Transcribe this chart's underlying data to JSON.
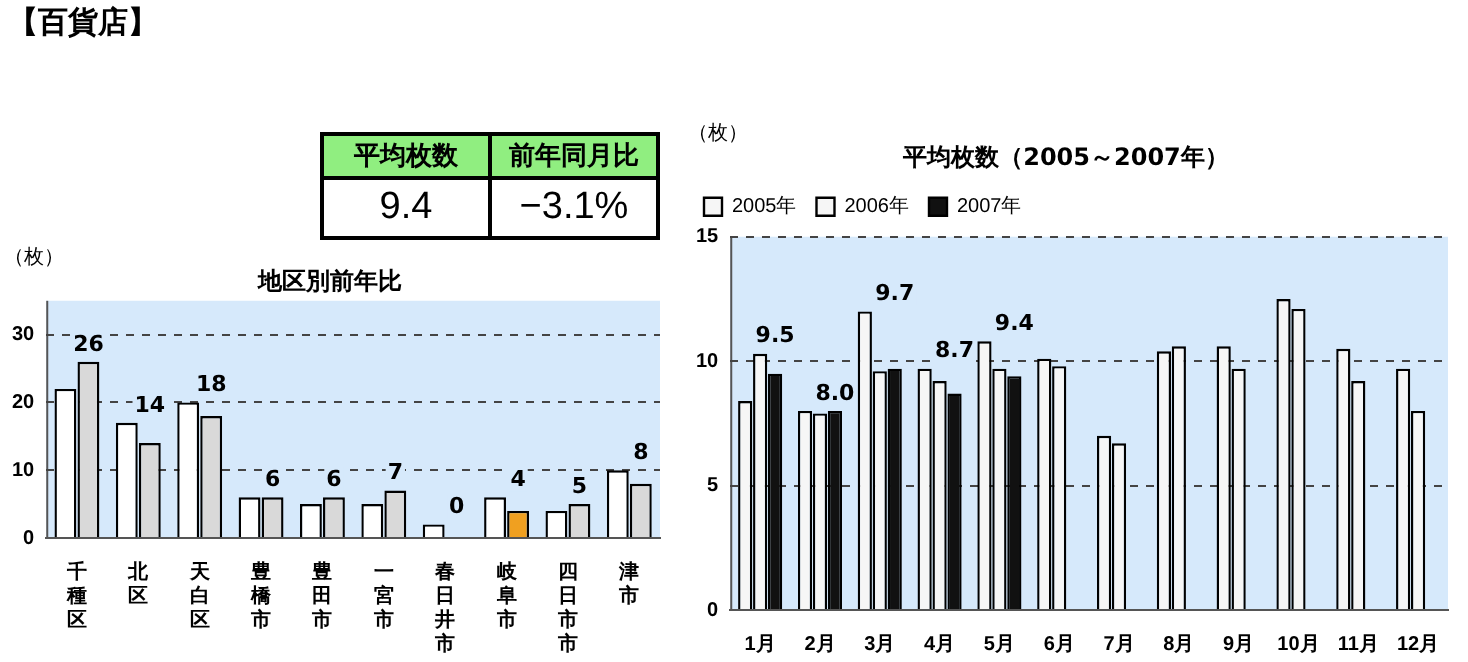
{
  "chart_data": [
    {
      "type": "other",
      "title": "【百貨店】",
      "categories": [
        "平均枚数",
        "前年同月比"
      ],
      "value_labels": [
        "9.4",
        "−3.1%"
      ]
    },
    {
      "type": "bar",
      "title": "地区別前年比",
      "ylabel": "（枚）",
      "categories": [
        "千種区",
        "北区",
        "天白区",
        "豊橋市",
        "豊田市",
        "一宮市",
        "春日井市",
        "岐阜市",
        "四日市市",
        "津市"
      ],
      "series": [
        {
          "color": "#ffffff",
          "values": [
            22,
            17,
            20,
            6,
            5,
            5,
            2,
            6,
            4,
            10
          ]
        },
        {
          "colors": [
            "#d9d9d9",
            "#d9d9d9",
            "#d9d9d9",
            "#d9d9d9",
            "#d9d9d9",
            "#d9d9d9",
            "#d9d9d9",
            "#f0a020",
            "#d9d9d9",
            "#d9d9d9"
          ],
          "values": [
            26,
            14,
            18,
            6,
            6,
            7,
            0,
            4,
            5,
            8
          ],
          "value_labels": [
            "26",
            "14",
            "18",
            "6",
            "6",
            "7",
            "0",
            "4",
            "5",
            "8"
          ]
        }
      ],
      "ylim": [
        0,
        35
      ],
      "yticks": [
        0,
        10,
        20,
        30
      ],
      "grid": "y",
      "legend": false
    },
    {
      "type": "bar",
      "title": "平均枚数（2005～2007年）",
      "ylabel": "（枚）",
      "categories": [
        "1月",
        "2月",
        "3月",
        "4月",
        "5月",
        "6月",
        "7月",
        "8月",
        "9月",
        "10月",
        "11月",
        "12月"
      ],
      "series": [
        {
          "name": "2005年",
          "color": "#f6f6f6",
          "values": [
            8.4,
            8.0,
            12.0,
            9.7,
            10.8,
            10.1,
            7.0,
            10.4,
            10.6,
            12.5,
            10.5,
            9.7
          ]
        },
        {
          "name": "2006年",
          "color": "#f6f6f6",
          "values": [
            10.3,
            7.9,
            9.6,
            9.2,
            9.7,
            9.8,
            6.7,
            10.6,
            9.7,
            12.1,
            9.2,
            8.0
          ]
        },
        {
          "name": "2007年",
          "color": "#111111",
          "values": [
            9.5,
            8.0,
            9.7,
            8.7,
            9.4,
            null,
            null,
            null,
            null,
            null,
            null,
            null
          ],
          "value_labels": [
            "9.5",
            "8.0",
            "9.7",
            "8.7",
            "9.4",
            null,
            null,
            null,
            null,
            null,
            null,
            null
          ]
        }
      ],
      "ylim": [
        0,
        15
      ],
      "yticks": [
        0,
        5,
        10,
        15
      ],
      "grid": "y",
      "legend": "top left"
    }
  ]
}
